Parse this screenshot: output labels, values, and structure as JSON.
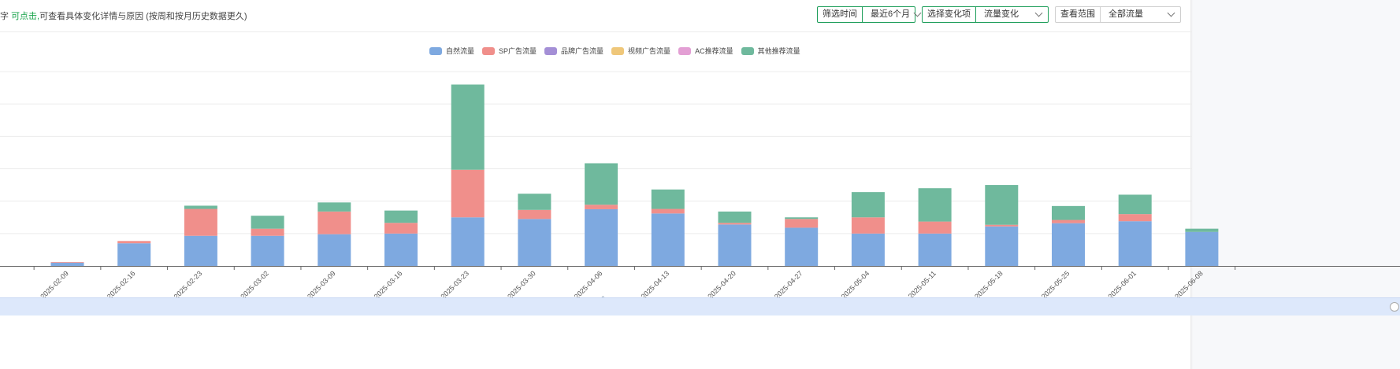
{
  "hint": {
    "prefix": "字",
    "clickable": "可点击,",
    "rest": "可查看具体变化详情与原因 (按周和按月历史数据更久)"
  },
  "filters": [
    {
      "label": "筛选时间",
      "value": "最近6个月"
    },
    {
      "label": "选择变化项",
      "value": "流量变化"
    },
    {
      "label": "查看范围",
      "value": "全部流量"
    }
  ],
  "chart_data": {
    "type": "bar",
    "stacked": true,
    "legend_position": "top-center",
    "grid": true,
    "categories": [
      "2025-02-09",
      "2025-02-16",
      "2025-02-23",
      "2025-03-02",
      "2025-03-09",
      "2025-03-16",
      "2025-03-23",
      "2025-03-30",
      "2025-04-06",
      "2025-04-13",
      "2025-04-20",
      "2025-04-27",
      "2025-05-04",
      "2025-05-11",
      "2025-05-18",
      "2025-05-25",
      "2025-06-01",
      "2025-06-08"
    ],
    "ylim": [
      0,
      6
    ],
    "series": [
      {
        "name": "自然流量",
        "color": "#7ea9e0",
        "values": [
          0.1,
          0.7,
          0.93,
          0.93,
          0.98,
          1.0,
          1.5,
          1.45,
          1.75,
          1.62,
          1.28,
          1.18,
          1.0,
          1.0,
          1.22,
          1.32,
          1.38,
          1.05
        ]
      },
      {
        "name": "SP广告流量",
        "color": "#f08f8b",
        "values": [
          0.02,
          0.07,
          0.83,
          0.22,
          0.7,
          0.33,
          1.47,
          0.28,
          0.14,
          0.14,
          0.05,
          0.27,
          0.5,
          0.37,
          0.05,
          0.1,
          0.22,
          0.0
        ]
      },
      {
        "name": "品牌广告流量",
        "color": "#a48fd6",
        "values": [
          0,
          0,
          0,
          0,
          0,
          0,
          0,
          0,
          0,
          0,
          0,
          0,
          0,
          0,
          0,
          0,
          0,
          0
        ]
      },
      {
        "name": "视频广告流量",
        "color": "#efc77a",
        "values": [
          0,
          0,
          0,
          0,
          0,
          0,
          0,
          0,
          0,
          0,
          0,
          0,
          0,
          0,
          0,
          0,
          0,
          0
        ]
      },
      {
        "name": "AC推荐流量",
        "color": "#e39fd4",
        "values": [
          0,
          0,
          0,
          0,
          0,
          0,
          0,
          0,
          0,
          0,
          0,
          0,
          0,
          0,
          0,
          0,
          0,
          0
        ]
      },
      {
        "name": "其他推荐流量",
        "color": "#6fb99d",
        "values": [
          0,
          0,
          0.1,
          0.4,
          0.28,
          0.38,
          2.63,
          0.5,
          1.28,
          0.6,
          0.35,
          0.05,
          0.78,
          1.03,
          1.23,
          0.43,
          0.6,
          0.1
        ]
      }
    ]
  }
}
